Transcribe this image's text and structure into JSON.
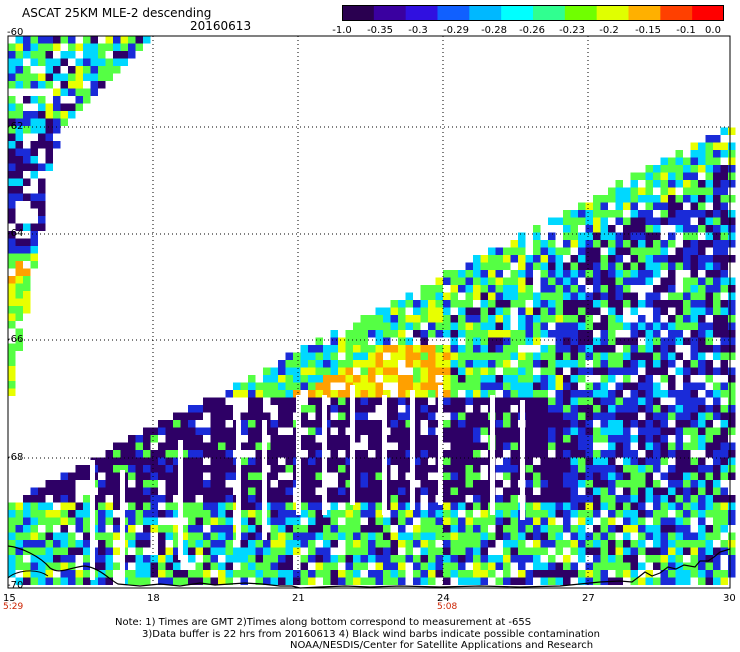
{
  "header": {
    "title": "ASCAT 25KM MLE-2 descending",
    "date": "20160613"
  },
  "colorbar": {
    "labels": [
      "-1.0",
      "-0.35",
      "-0.3",
      "-0.29",
      "-0.28",
      "-0.26",
      "-0.23",
      "-0.2",
      "-0.15",
      "-0.1",
      "0.0"
    ],
    "colors": [
      "#2a0050",
      "#3a00a0",
      "#3010e0",
      "#1060ff",
      "#00b8ff",
      "#00ffff",
      "#30ff90",
      "#70ff00",
      "#e0ff00",
      "#ffb000",
      "#ff4000",
      "#ff0000"
    ]
  },
  "axes": {
    "lat_labels": [
      "-60",
      "-62",
      "-64",
      "-66",
      "-68",
      "-70"
    ],
    "lon_labels": [
      "15",
      "18",
      "21",
      "24",
      "27",
      "30"
    ],
    "time_labels": [
      "5:29",
      "5:08"
    ]
  },
  "notes": {
    "line1": "Note: 1) Times are GMT 2)Times along bottom correspond to measurement at -65S",
    "line2": "3)Data buffer is 22 hrs from 20160613 4) Black wind barbs indicate possible contamination",
    "line3": "NOAA/NESDIS/Center for Satellite Applications and Research"
  },
  "map_style": {
    "purple": "#2e0066",
    "blue": "#1a2bd8",
    "cyan": "#00d8ff",
    "green": "#55ff44",
    "yellow": "#e8ff00",
    "orange": "#ffa000"
  }
}
